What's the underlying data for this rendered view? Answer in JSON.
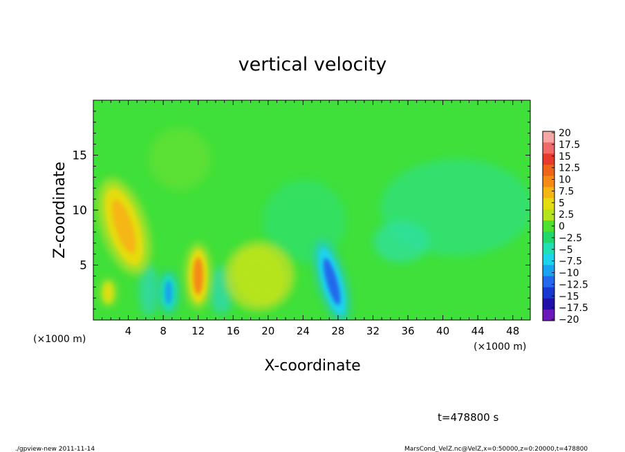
{
  "chart_data": {
    "type": "heatmap",
    "title": "vertical velocity",
    "xlabel": "X-coordinate",
    "ylabel": "Z-coordinate",
    "x_unit_left": "(×1000 m)",
    "x_unit_right": "(×1000 m)",
    "xlim": [
      0,
      50
    ],
    "ylim": [
      0,
      20
    ],
    "x_ticks": [
      "4",
      "8",
      "12",
      "16",
      "20",
      "24",
      "28",
      "32",
      "36",
      "40",
      "44",
      "48"
    ],
    "y_ticks": [
      "5",
      "10",
      "15"
    ],
    "colorbar": {
      "labels": [
        "20",
        "17.5",
        "15",
        "12.5",
        "10",
        "7.5",
        "5",
        "2.5",
        "0",
        "−2.5",
        "−5",
        "−7.5",
        "−10",
        "−12.5",
        "−15",
        "−17.5",
        "−20"
      ],
      "colors": [
        "#f7a6a6",
        "#f06a6a",
        "#e63a2e",
        "#ee6418",
        "#f58a14",
        "#f6b612",
        "#e4dc10",
        "#b6e41c",
        "#50e030",
        "#20d86c",
        "#1ee0b4",
        "#1cd4ec",
        "#18a4f0",
        "#2468ec",
        "#1838d2",
        "#2210aa",
        "#6a18b8"
      ]
    },
    "features": [
      {
        "x": 3.5,
        "z": 8.5,
        "value": 8.5
      },
      {
        "x": 12.0,
        "z": 4.0,
        "value": 10.0
      },
      {
        "x": 8.6,
        "z": 2.5,
        "value": -9.0
      },
      {
        "x": 27.3,
        "z": 3.5,
        "value": -13.0
      },
      {
        "x": 19.0,
        "z": 4.0,
        "value": 3.0
      },
      {
        "x": 1.7,
        "z": 2.5,
        "value": 5.0
      }
    ]
  },
  "footer": {
    "time": "t=478800 s",
    "program": "./gpview-new  2011-11-14",
    "source": "MarsCond_VelZ.nc@VelZ,x=0:50000,z=0:20000,t=478800"
  }
}
